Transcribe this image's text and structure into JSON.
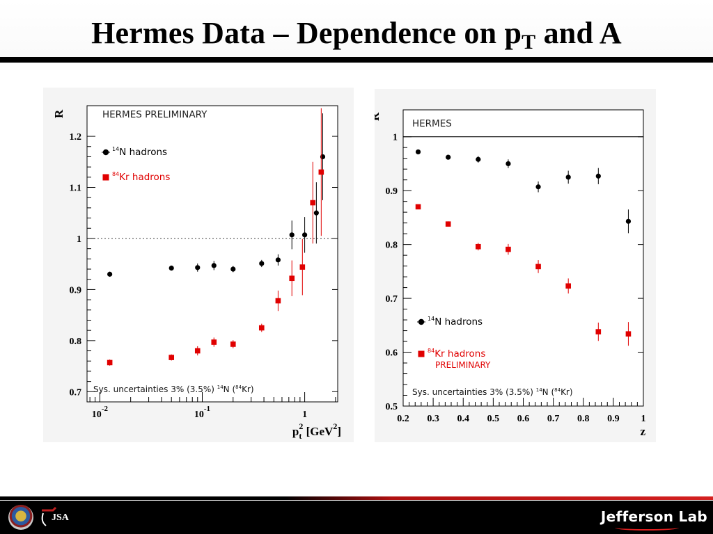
{
  "slide": {
    "title_main": "Hermes Data – Dependence on p",
    "title_sub": "T",
    "title_end": " and A"
  },
  "colors": {
    "black_series": "#000000",
    "red_series": "#e00000",
    "reference_line": "#000000"
  },
  "chart_data": [
    {
      "type": "scatter",
      "title": "",
      "annotation_header": "HERMES PRELIMINARY",
      "xlabel": "p",
      "xlabel_sub": "t",
      "xlabel_sup": "2",
      "xlabel_unit": " [GeV",
      "xlabel_unit_sup": "2",
      "xlabel_end": "]",
      "ylabel": "R",
      "xscale": "log",
      "xlim": [
        0.0075,
        2.1
      ],
      "ylim": [
        0.68,
        1.26
      ],
      "yticks": [
        0.7,
        0.8,
        0.9,
        1,
        1.1,
        1.2
      ],
      "ytick_labels": [
        "0.7",
        "0.8",
        "0.9",
        "1",
        "1.1",
        "1.2"
      ],
      "xticks": [
        0.01,
        0.1,
        1
      ],
      "xtick_labels": [
        {
          "base": "10",
          "exp": "-2"
        },
        {
          "base": "10",
          "exp": "-1"
        },
        {
          "base": "1",
          "exp": ""
        }
      ],
      "reference_line": 1,
      "reference_style": "dotted",
      "legend": [
        {
          "nucleus_sup": "14",
          "label": "N hadrons",
          "color": "#000000",
          "marker": "circle"
        },
        {
          "nucleus_sup": "84",
          "label": "Kr hadrons",
          "color": "#e00000",
          "marker": "square"
        }
      ],
      "footnote": "Sys. uncertainties 3% (3.5%) ",
      "footnote_n_sup": "14",
      "footnote_n": "N (",
      "footnote_kr_sup": "84",
      "footnote_kr": "Kr)",
      "series": [
        {
          "name": "14N hadrons",
          "color": "#000000",
          "marker": "circle",
          "x": [
            0.0125,
            0.05,
            0.09,
            0.13,
            0.2,
            0.38,
            0.55,
            0.75,
            1.0,
            1.3,
            1.5
          ],
          "y": [
            0.93,
            0.942,
            0.943,
            0.947,
            0.94,
            0.951,
            0.958,
            1.007,
            1.007,
            1.05,
            1.16
          ],
          "err": [
            0.005,
            0.005,
            0.008,
            0.009,
            0.006,
            0.007,
            0.011,
            0.028,
            0.035,
            0.06,
            0.085
          ]
        },
        {
          "name": "84Kr hadrons",
          "color": "#e00000",
          "marker": "square",
          "x": [
            0.0125,
            0.05,
            0.09,
            0.13,
            0.2,
            0.38,
            0.55,
            0.75,
            0.95,
            1.2,
            1.45
          ],
          "y": [
            0.757,
            0.767,
            0.78,
            0.797,
            0.793,
            0.825,
            0.878,
            0.922,
            0.944,
            1.07,
            1.13
          ],
          "err": [
            0.006,
            0.006,
            0.009,
            0.009,
            0.008,
            0.008,
            0.02,
            0.035,
            0.055,
            0.08,
            0.125
          ]
        }
      ]
    },
    {
      "type": "scatter",
      "title": "",
      "annotation_header": "HERMES",
      "xlabel": "z",
      "ylabel": "R",
      "xscale": "linear",
      "xlim": [
        0.2,
        1.0
      ],
      "ylim": [
        0.5,
        1.05
      ],
      "yticks": [
        0.5,
        0.6,
        0.7,
        0.8,
        0.9,
        1
      ],
      "ytick_labels": [
        "0.5",
        "0.6",
        "0.7",
        "0.8",
        "0.9",
        "1"
      ],
      "xticks": [
        0.2,
        0.3,
        0.4,
        0.5,
        0.6,
        0.7,
        0.8,
        0.9,
        1
      ],
      "xtick_labels": [
        "0.2",
        "0.3",
        "0.4",
        "0.5",
        "0.6",
        "0.7",
        "0.8",
        "0.9",
        "1"
      ],
      "reference_line": 1,
      "reference_style": "solid",
      "legend": [
        {
          "nucleus_sup": "14",
          "label": "N hadrons",
          "color": "#000000",
          "marker": "circle"
        },
        {
          "nucleus_sup": "84",
          "label": "Kr hadrons",
          "label2": "PRELIMINARY",
          "color": "#e00000",
          "marker": "square"
        }
      ],
      "footnote": "Sys. uncertainties 3% (3.5%) ",
      "footnote_n_sup": "14",
      "footnote_n": "N (",
      "footnote_kr_sup": "84",
      "footnote_kr": "Kr)",
      "series": [
        {
          "name": "14N hadrons",
          "color": "#000000",
          "marker": "circle",
          "x": [
            0.25,
            0.35,
            0.45,
            0.55,
            0.65,
            0.75,
            0.85,
            0.95
          ],
          "y": [
            0.972,
            0.962,
            0.958,
            0.95,
            0.907,
            0.925,
            0.927,
            0.843
          ],
          "err": [
            0.004,
            0.004,
            0.006,
            0.008,
            0.01,
            0.012,
            0.015,
            0.022
          ]
        },
        {
          "name": "84Kr hadrons",
          "color": "#e00000",
          "marker": "square",
          "x": [
            0.25,
            0.35,
            0.45,
            0.55,
            0.65,
            0.75,
            0.85,
            0.95
          ],
          "y": [
            0.87,
            0.838,
            0.796,
            0.791,
            0.759,
            0.723,
            0.638,
            0.634
          ],
          "err": [
            0.004,
            0.005,
            0.007,
            0.01,
            0.012,
            0.014,
            0.017,
            0.022
          ]
        }
      ]
    }
  ],
  "footer": {
    "left_logo_text": "JSA",
    "right_logo_text": "Jefferson Lab"
  }
}
